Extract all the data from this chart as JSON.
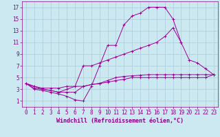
{
  "background_color": "#cce8f0",
  "grid_color": "#aaccdd",
  "line_color": "#990099",
  "xlabel": "Windchill (Refroidissement éolien,°C)",
  "xlabel_fontsize": 6.0,
  "tick_fontsize": 5.5,
  "tick_color": "#880088",
  "xlim": [
    -0.5,
    23.5
  ],
  "ylim": [
    0,
    18
  ],
  "xticks": [
    0,
    1,
    2,
    3,
    4,
    5,
    6,
    7,
    8,
    9,
    10,
    11,
    12,
    13,
    14,
    15,
    16,
    17,
    18,
    19,
    20,
    21,
    22,
    23
  ],
  "yticks": [
    1,
    3,
    5,
    7,
    9,
    11,
    13,
    15,
    17
  ],
  "curves": [
    {
      "x": [
        0,
        1,
        2,
        3,
        4,
        5,
        6,
        7,
        8,
        9,
        10,
        11,
        12,
        13,
        14,
        15,
        16,
        17,
        18,
        19,
        20,
        21,
        22,
        23
      ],
      "y": [
        4,
        3,
        2.8,
        2.5,
        2.2,
        1.8,
        1.2,
        1.0,
        3.5,
        7.0,
        10.5,
        10.5,
        14.0,
        15.5,
        16.0,
        17.0,
        17.0,
        17.0,
        15.0,
        11.0,
        null,
        null,
        null,
        null
      ]
    },
    {
      "x": [
        0,
        1,
        2,
        3,
        4,
        5,
        6,
        7,
        8,
        9,
        10,
        11,
        12,
        13,
        14,
        15,
        16,
        17,
        18,
        19,
        20,
        21,
        22,
        23
      ],
      "y": [
        4,
        3.2,
        3.0,
        2.8,
        2.5,
        3.0,
        3.5,
        7.0,
        7.0,
        7.5,
        8.0,
        8.5,
        9.0,
        9.5,
        10.0,
        10.5,
        11.0,
        12.0,
        13.5,
        11.0,
        8.0,
        7.5,
        6.5,
        5.5
      ]
    },
    {
      "x": [
        0,
        1,
        2,
        3,
        4,
        5,
        6,
        7,
        8,
        9,
        10,
        11,
        12,
        13,
        14,
        15,
        16,
        17,
        18,
        19,
        20,
        21,
        22,
        23
      ],
      "y": [
        4,
        3.5,
        3.2,
        3.2,
        3.2,
        3.5,
        3.5,
        3.5,
        3.8,
        4.0,
        4.5,
        5.0,
        5.2,
        5.3,
        5.4,
        5.5,
        5.5,
        5.5,
        5.5,
        5.5,
        5.5,
        5.5,
        5.5,
        5.5
      ]
    },
    {
      "x": [
        0,
        1,
        2,
        3,
        4,
        5,
        6,
        7,
        8,
        9,
        10,
        11,
        12,
        13,
        14,
        15,
        16,
        17,
        18,
        19,
        20,
        21,
        22,
        23
      ],
      "y": [
        4,
        3.5,
        3.0,
        2.8,
        2.5,
        2.5,
        2.5,
        3.5,
        3.8,
        4.0,
        4.2,
        4.5,
        4.7,
        5.0,
        5.0,
        5.0,
        5.0,
        5.0,
        5.0,
        5.0,
        5.0,
        5.0,
        5.0,
        5.5
      ]
    }
  ]
}
